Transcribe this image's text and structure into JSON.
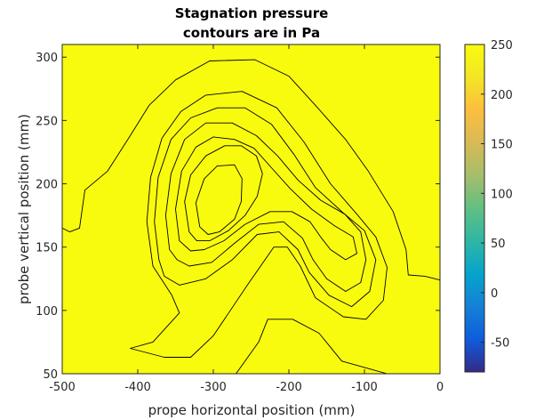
{
  "chart_data": {
    "type": "contour",
    "title_line1": "Stagnation pressure",
    "title_line2": "contours are in Pa",
    "xlabel": "prope horizontal position (mm)",
    "ylabel": "probe vertical position (mm)",
    "xlim": [
      -500,
      0
    ],
    "ylim": [
      50,
      310
    ],
    "xticks": [
      -500,
      -400,
      -300,
      -200,
      -100,
      0
    ],
    "yticks": [
      50,
      100,
      150,
      200,
      250,
      300
    ],
    "colorbar": {
      "range": [
        -80,
        250
      ],
      "ticks": [
        -50,
        0,
        50,
        100,
        150,
        200,
        250
      ]
    },
    "levels": [
      {
        "value": 250,
        "color": "#f9fb0e",
        "points": [
          [
            -500,
            50
          ],
          [
            0,
            50
          ],
          [
            0,
            310
          ],
          [
            -500,
            310
          ]
        ]
      },
      {
        "value": 200,
        "color": "#fbb32f",
        "points": [
          [
            -500,
            165
          ],
          [
            -490,
            162
          ],
          [
            -477,
            165
          ],
          [
            -470,
            195
          ],
          [
            -440,
            210
          ],
          [
            -410,
            238
          ],
          [
            -385,
            262
          ],
          [
            -350,
            282
          ],
          [
            -305,
            297
          ],
          [
            -245,
            298
          ],
          [
            -200,
            285
          ],
          [
            -165,
            262
          ],
          [
            -125,
            235
          ],
          [
            -95,
            210
          ],
          [
            -62,
            178
          ],
          [
            -45,
            148
          ],
          [
            -42,
            128
          ],
          [
            -20,
            127
          ],
          [
            0,
            124
          ],
          [
            0,
            50
          ],
          [
            -70,
            50
          ],
          [
            -100,
            55
          ],
          [
            -130,
            60
          ],
          [
            -160,
            82
          ],
          [
            -195,
            93
          ],
          [
            -228,
            93
          ],
          [
            -240,
            75
          ],
          [
            -270,
            50
          ],
          [
            -500,
            50
          ]
        ]
      },
      {
        "value": 150,
        "color": "#a6c42d",
        "points": [
          [
            -410,
            70
          ],
          [
            -380,
            75
          ],
          [
            -345,
            98
          ],
          [
            -355,
            112
          ],
          [
            -380,
            135
          ],
          [
            -388,
            170
          ],
          [
            -383,
            205
          ],
          [
            -368,
            236
          ],
          [
            -343,
            257
          ],
          [
            -310,
            270
          ],
          [
            -262,
            273
          ],
          [
            -216,
            260
          ],
          [
            -180,
            233
          ],
          [
            -145,
            200
          ],
          [
            -110,
            176
          ],
          [
            -85,
            158
          ],
          [
            -70,
            134
          ],
          [
            -75,
            108
          ],
          [
            -98,
            93
          ],
          [
            -128,
            95
          ],
          [
            -165,
            110
          ],
          [
            -185,
            135
          ],
          [
            -202,
            150
          ],
          [
            -220,
            150
          ],
          [
            -255,
            120
          ],
          [
            -300,
            80
          ],
          [
            -330,
            63
          ],
          [
            -365,
            63
          ]
        ]
      },
      {
        "value": 100,
        "color": "#2ec79d",
        "points": [
          [
            -372,
            140
          ],
          [
            -378,
            170
          ],
          [
            -373,
            205
          ],
          [
            -356,
            235
          ],
          [
            -330,
            252
          ],
          [
            -295,
            260
          ],
          [
            -258,
            260
          ],
          [
            -223,
            247
          ],
          [
            -193,
            223
          ],
          [
            -165,
            197
          ],
          [
            -128,
            177
          ],
          [
            -100,
            163
          ],
          [
            -85,
            140
          ],
          [
            -93,
            115
          ],
          [
            -117,
            103
          ],
          [
            -147,
            112
          ],
          [
            -173,
            130
          ],
          [
            -188,
            148
          ],
          [
            -213,
            162
          ],
          [
            -242,
            160
          ],
          [
            -275,
            140
          ],
          [
            -310,
            125
          ],
          [
            -345,
            120
          ],
          [
            -365,
            127
          ]
        ]
      },
      {
        "value": 50,
        "color": "#08b0d2",
        "points": [
          [
            -358,
            148
          ],
          [
            -363,
            175
          ],
          [
            -356,
            208
          ],
          [
            -338,
            235
          ],
          [
            -310,
            248
          ],
          [
            -275,
            248
          ],
          [
            -243,
            238
          ],
          [
            -215,
            222
          ],
          [
            -188,
            203
          ],
          [
            -158,
            187
          ],
          [
            -126,
            176
          ],
          [
            -105,
            162
          ],
          [
            -98,
            140
          ],
          [
            -105,
            122
          ],
          [
            -125,
            115
          ],
          [
            -150,
            125
          ],
          [
            -168,
            140
          ],
          [
            -182,
            157
          ],
          [
            -207,
            170
          ],
          [
            -240,
            168
          ],
          [
            -272,
            153
          ],
          [
            -302,
            138
          ],
          [
            -332,
            135
          ],
          [
            -348,
            140
          ]
        ]
      },
      {
        "value": 0,
        "color": "#2b87f8",
        "points": [
          [
            -345,
            155
          ],
          [
            -350,
            180
          ],
          [
            -342,
            210
          ],
          [
            -323,
            229
          ],
          [
            -300,
            237
          ],
          [
            -272,
            235
          ],
          [
            -246,
            228
          ],
          [
            -222,
            212
          ],
          [
            -198,
            196
          ],
          [
            -170,
            180
          ],
          [
            -140,
            167
          ],
          [
            -115,
            158
          ],
          [
            -110,
            145
          ],
          [
            -125,
            140
          ],
          [
            -145,
            148
          ],
          [
            -158,
            158
          ],
          [
            -172,
            170
          ],
          [
            -196,
            178
          ],
          [
            -225,
            178
          ],
          [
            -258,
            168
          ],
          [
            -286,
            155
          ],
          [
            -312,
            148
          ],
          [
            -330,
            147
          ]
        ]
      },
      {
        "value": -50,
        "color": "#4549e9",
        "points": [
          [
            -332,
            162
          ],
          [
            -338,
            186
          ],
          [
            -330,
            207
          ],
          [
            -310,
            222
          ],
          [
            -285,
            230
          ],
          [
            -263,
            230
          ],
          [
            -243,
            222
          ],
          [
            -235,
            208
          ],
          [
            -242,
            190
          ],
          [
            -258,
            175
          ],
          [
            -280,
            163
          ],
          [
            -305,
            155
          ],
          [
            -322,
            155
          ]
        ]
      },
      {
        "value": -75,
        "color": "#3a2fb0",
        "points": [
          [
            -318,
            166
          ],
          [
            -323,
            185
          ],
          [
            -312,
            204
          ],
          [
            -295,
            214
          ],
          [
            -272,
            215
          ],
          [
            -262,
            204
          ],
          [
            -263,
            186
          ],
          [
            -272,
            172
          ],
          [
            -292,
            162
          ],
          [
            -307,
            160
          ]
        ]
      }
    ]
  }
}
